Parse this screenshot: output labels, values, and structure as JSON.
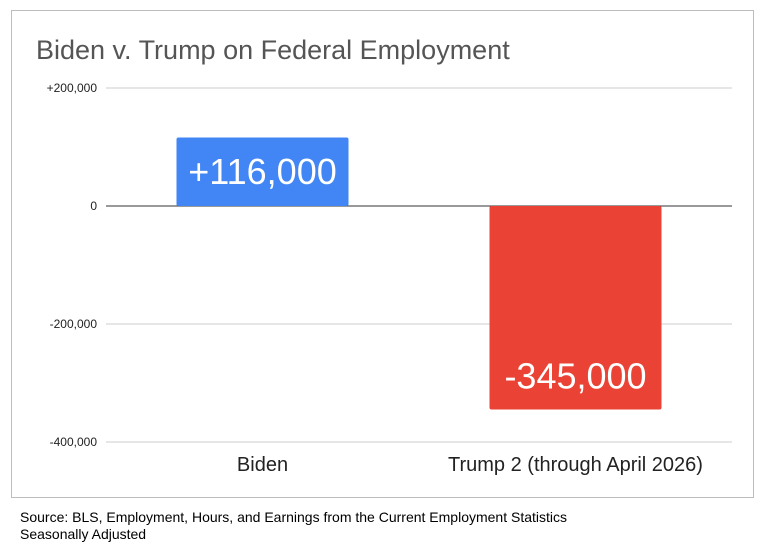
{
  "chart_data": {
    "type": "bar",
    "title": "Biden v. Trump on Federal Employment",
    "categories": [
      "Biden",
      "Trump 2 (through April 2026)"
    ],
    "values": [
      116000,
      -345000
    ],
    "value_labels": [
      "+116,000",
      "-345,000"
    ],
    "colors": [
      "#4285f4",
      "#ea4335"
    ],
    "ylim": [
      -400000,
      200000
    ],
    "yticks": [
      200000,
      0,
      -200000,
      -400000
    ],
    "ytick_labels": [
      "+200,000",
      "0",
      "-200,000",
      "-400,000"
    ],
    "xlabel": "",
    "ylabel": "",
    "grid": true,
    "legend": "none"
  },
  "source": {
    "line1": "Source: BLS, Employment, Hours, and Earnings from the Current Employment Statistics",
    "line2": "Seasonally Adjusted"
  }
}
